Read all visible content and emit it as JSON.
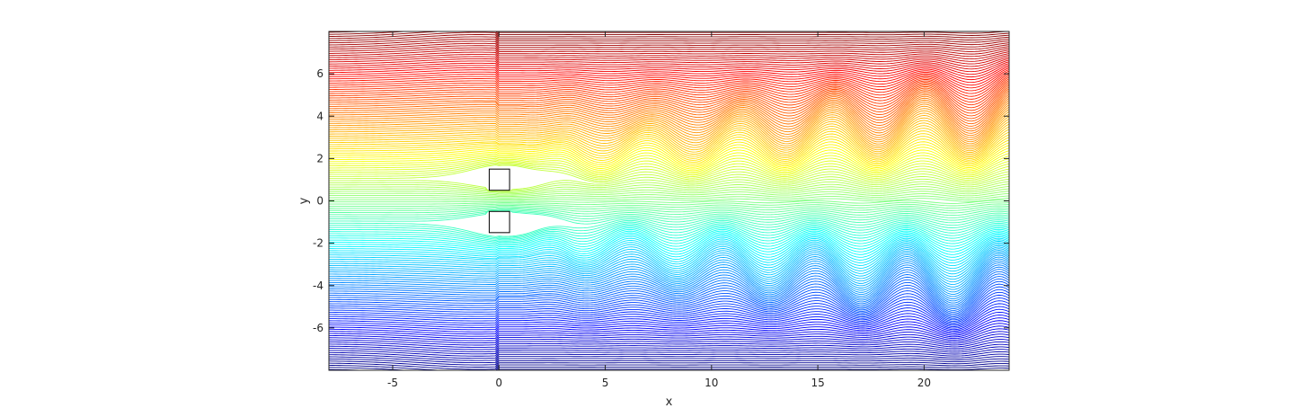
{
  "chart_data": {
    "type": "contour",
    "title": "",
    "xlabel": "x",
    "ylabel": "y",
    "xlim": [
      -8,
      24
    ],
    "ylim": [
      -8,
      8
    ],
    "x_ticks": [
      -5,
      0,
      5,
      10,
      15,
      20
    ],
    "y_ticks": [
      -6,
      -4,
      -2,
      0,
      2,
      4,
      6
    ],
    "x_tick_labels": [
      "-5",
      "0",
      "5",
      "10",
      "15",
      "20"
    ],
    "y_tick_labels": [
      "-6",
      "-4",
      "-2",
      "0",
      "2",
      "4",
      "6"
    ],
    "grid": false,
    "legend": "none",
    "colormap": "jet",
    "line_count": 160,
    "obstacles": [
      {
        "x_min": -0.5,
        "x_max": 0.5,
        "y_min": 0.5,
        "y_max": 1.5
      },
      {
        "x_min": -0.5,
        "x_max": 0.5,
        "y_min": -1.5,
        "y_max": -0.5
      }
    ],
    "colors": {
      "axis": "#262626",
      "obstacle_edge": "#000000",
      "obstacle_fill": "#ffffff"
    }
  }
}
